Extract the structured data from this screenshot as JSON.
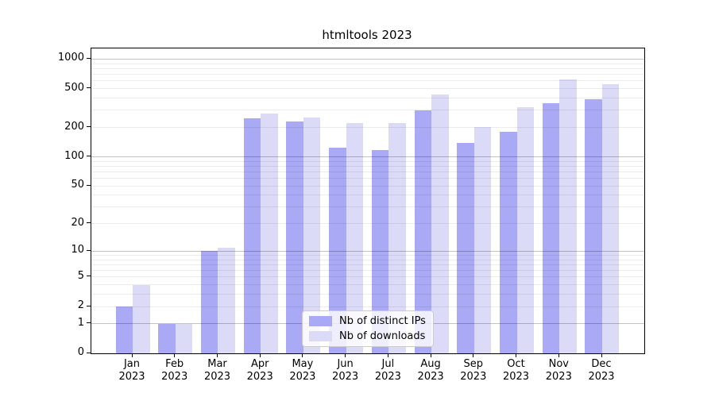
{
  "header": {
    "title": "htmltools 2023"
  },
  "chart_data": {
    "type": "bar",
    "title": "htmltools 2023",
    "categories": [
      "Jan",
      "Feb",
      "Mar",
      "Apr",
      "May",
      "Jun",
      "Jul",
      "Aug",
      "Sep",
      "Oct",
      "Nov",
      "Dec"
    ],
    "category_year": "2023",
    "series": [
      {
        "name": "Nb of distinct IPs",
        "color": "#a9a9f6",
        "values": [
          2,
          1,
          10,
          249,
          229,
          124,
          118,
          298,
          140,
          181,
          355,
          390
        ]
      },
      {
        "name": "Nb of downloads",
        "color": "#dbdbf8",
        "values": [
          4,
          1,
          11,
          278,
          253,
          222,
          224,
          433,
          204,
          323,
          616,
          560
        ]
      }
    ],
    "yscale": "log1p",
    "ylim": [
      0,
      1000
    ],
    "ytick_labels": [
      "0",
      "1",
      "2",
      "5",
      "10",
      "20",
      "50",
      "100",
      "200",
      "500",
      "1000"
    ],
    "ytick_values": [
      0,
      1,
      2,
      5,
      10,
      20,
      50,
      100,
      200,
      500,
      1000
    ],
    "major_grid_values": [
      1,
      10,
      100,
      1000
    ],
    "minor_grid_values": [
      2,
      3,
      4,
      5,
      6,
      7,
      8,
      9,
      20,
      30,
      40,
      50,
      60,
      70,
      80,
      90,
      200,
      300,
      400,
      500,
      600,
      700,
      800,
      900
    ],
    "grid": true,
    "legend": {
      "position": "inside-bottom-center",
      "entries": [
        "Nb of distinct IPs",
        "Nb of downloads"
      ]
    },
    "colors": {
      "distinct_ips_bar": "#a9a9f6",
      "downloads_bar": "#dbdbf8",
      "major_gridline": "#c2c2c2",
      "minor_gridline": "#ececec",
      "spine": "#000000",
      "legend_border": "#cccccc"
    }
  }
}
